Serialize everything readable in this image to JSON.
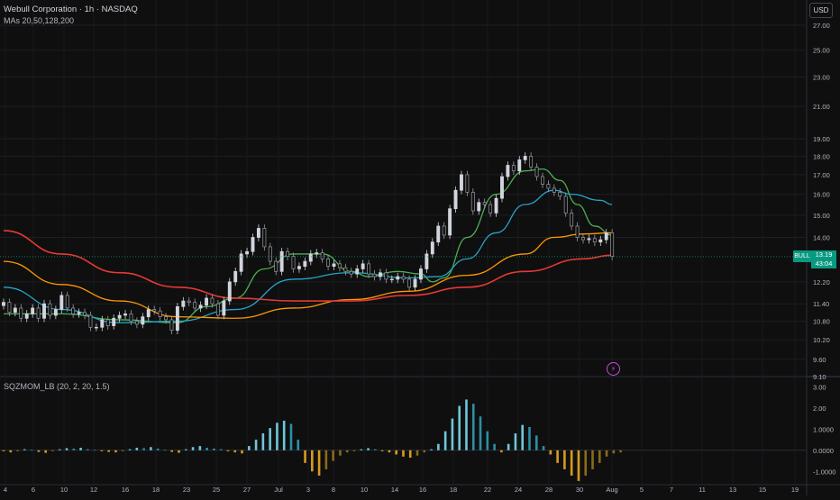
{
  "header": {
    "title": "Webull Corporation · 1h · NASDAQ",
    "ma_label": "MAs 20,50,128,200",
    "indicator_label": "SQZMOM_LB (20, 2, 20, 1.5)",
    "currency": "USD"
  },
  "last_price": {
    "ticker": "BULL",
    "price": "13.19",
    "countdown": "43:04"
  },
  "colors": {
    "background": "#0f0f0f",
    "up": "#d1d4dc",
    "ma20": "#4caf50",
    "ma50": "#26a3c9",
    "ma128": "#ff9800",
    "ma200": "#e53935",
    "mom_lime": "#6ec6d8",
    "mom_green": "#2b8fa6",
    "mom_red": "#d79a1f",
    "mom_maroon": "#8a6a1a",
    "tag": "#089981"
  },
  "chart_data": [
    {
      "type": "candlestick",
      "title": "Webull Corporation · 1h · NASDAQ",
      "y_scale": "log",
      "ylim": [
        9.1,
        27.0
      ],
      "y_ticks": [
        "27.00",
        "25.00",
        "23.00",
        "21.00",
        "19.00",
        "18.00",
        "17.00",
        "16.00",
        "15.00",
        "14.00",
        "12.20",
        "11.40",
        "10.80",
        "10.20",
        "9.60",
        "9.10"
      ],
      "x_ticks": [
        "4",
        "6",
        "10",
        "12",
        "16",
        "18",
        "23",
        "25",
        "27",
        "Jul",
        "3",
        "8",
        "10",
        "14",
        "16",
        "18",
        "22",
        "24",
        "28",
        "30",
        "Aug",
        "5",
        "7",
        "11",
        "13",
        "15",
        "19"
      ],
      "grid": true,
      "series_ma": [
        {
          "name": "MA 20",
          "path_anchors": [
            [
              0,
              11.05
            ],
            [
              10,
              11.05
            ],
            [
              20,
              10.85
            ],
            [
              30,
              10.75
            ],
            [
              35,
              11.3
            ],
            [
              40,
              11.6
            ],
            [
              45,
              12.7
            ],
            [
              50,
              13.3
            ],
            [
              55,
              13.3
            ],
            [
              60,
              12.6
            ],
            [
              63,
              12.4
            ],
            [
              68,
              12.6
            ],
            [
              72,
              12.5
            ],
            [
              74,
              12.2
            ],
            [
              76,
              12.35
            ],
            [
              80,
              14.0
            ],
            [
              85,
              16.0
            ],
            [
              90,
              17.2
            ],
            [
              93,
              17.3
            ],
            [
              96,
              16.7
            ],
            [
              99,
              15.5
            ],
            [
              102,
              14.5
            ],
            [
              105,
              14.1
            ]
          ]
        },
        {
          "name": "MA 50",
          "path_anchors": [
            [
              0,
              12.0
            ],
            [
              10,
              11.2
            ],
            [
              20,
              10.75
            ],
            [
              30,
              10.8
            ],
            [
              40,
              11.2
            ],
            [
              50,
              12.3
            ],
            [
              60,
              12.55
            ],
            [
              70,
              12.35
            ],
            [
              75,
              12.4
            ],
            [
              80,
              13.1
            ],
            [
              85,
              14.2
            ],
            [
              90,
              15.5
            ],
            [
              95,
              16.2
            ],
            [
              98,
              16.0
            ],
            [
              103,
              15.7
            ],
            [
              105,
              15.5
            ]
          ]
        },
        {
          "name": "MA 128",
          "path_anchors": [
            [
              0,
              13.0
            ],
            [
              10,
              12.1
            ],
            [
              20,
              11.5
            ],
            [
              30,
              10.95
            ],
            [
              40,
              10.9
            ],
            [
              50,
              11.25
            ],
            [
              60,
              11.55
            ],
            [
              70,
              11.85
            ],
            [
              80,
              12.45
            ],
            [
              90,
              13.3
            ],
            [
              95,
              14.0
            ],
            [
              100,
              14.15
            ],
            [
              105,
              14.2
            ]
          ]
        },
        {
          "name": "MA 200",
          "path_anchors": [
            [
              0,
              14.3
            ],
            [
              10,
              13.3
            ],
            [
              20,
              12.55
            ],
            [
              30,
              12.0
            ],
            [
              40,
              11.6
            ],
            [
              50,
              11.5
            ],
            [
              60,
              11.5
            ],
            [
              70,
              11.7
            ],
            [
              80,
              12.0
            ],
            [
              90,
              12.6
            ],
            [
              100,
              13.1
            ],
            [
              105,
              13.25
            ]
          ]
        }
      ],
      "closes": [
        11.45,
        11.1,
        11.25,
        10.9,
        11.05,
        11.25,
        10.9,
        11.4,
        11.0,
        11.2,
        11.7,
        11.25,
        11.05,
        11.1,
        11.0,
        10.6,
        10.6,
        10.85,
        10.65,
        10.9,
        11.0,
        11.05,
        10.8,
        10.7,
        10.95,
        11.2,
        11.15,
        10.95,
        10.85,
        10.5,
        11.3,
        11.5,
        11.45,
        11.25,
        11.35,
        11.6,
        11.4,
        11.0,
        11.5,
        12.2,
        12.6,
        13.3,
        13.4,
        14.0,
        14.4,
        13.6,
        13.0,
        12.6,
        13.4,
        13.2,
        12.7,
        12.8,
        13.0,
        13.3,
        13.35,
        13.1,
        12.8,
        12.9,
        12.75,
        12.6,
        12.5,
        12.7,
        12.9,
        12.5,
        12.4,
        12.55,
        12.3,
        12.3,
        12.4,
        12.3,
        12.0,
        12.3,
        12.7,
        13.3,
        13.8,
        14.5,
        14.1,
        15.3,
        16.2,
        17.0,
        16.1,
        15.2,
        15.6,
        15.5,
        15.1,
        15.8,
        16.9,
        17.5,
        17.2,
        17.8,
        18.0,
        17.4,
        16.9,
        16.5,
        16.3,
        16.1,
        15.9,
        15.1,
        14.5,
        14.0,
        13.9,
        13.95,
        13.8,
        13.9,
        14.2,
        13.2
      ]
    },
    {
      "type": "bar",
      "title": "SQZMOM_LB (20, 2, 20, 1.5)",
      "ylim": [
        -1.5,
        3.4
      ],
      "y_ticks": [
        "3.00",
        "2.00",
        "1.0000",
        "0.0000",
        "-1.0000"
      ],
      "values": [
        -0.05,
        -0.1,
        -0.05,
        0.05,
        0.02,
        -0.08,
        -0.12,
        -0.05,
        0.05,
        0.1,
        0.08,
        0.12,
        0.05,
        0.02,
        -0.05,
        -0.08,
        -0.1,
        -0.05,
        0.05,
        0.12,
        0.1,
        0.15,
        0.08,
        0.02,
        -0.08,
        -0.12,
        0.05,
        0.15,
        0.2,
        0.12,
        0.08,
        0.05,
        -0.05,
        -0.1,
        -0.15,
        0.2,
        0.5,
        0.8,
        1.05,
        1.3,
        1.4,
        1.25,
        0.5,
        -0.6,
        -1.0,
        -1.2,
        -0.9,
        -0.5,
        -0.25,
        -0.1,
        -0.05,
        0.05,
        0.1,
        0.05,
        -0.05,
        -0.1,
        -0.2,
        -0.3,
        -0.35,
        -0.25,
        -0.1,
        0.05,
        0.3,
        0.9,
        1.5,
        2.1,
        2.4,
        2.2,
        1.6,
        0.9,
        0.3,
        -0.1,
        0.3,
        0.8,
        1.2,
        1.1,
        0.7,
        0.2,
        -0.2,
        -0.6,
        -0.9,
        -1.2,
        -1.45,
        -1.2,
        -0.9,
        -0.6,
        -0.3,
        -0.15,
        -0.1
      ]
    }
  ]
}
